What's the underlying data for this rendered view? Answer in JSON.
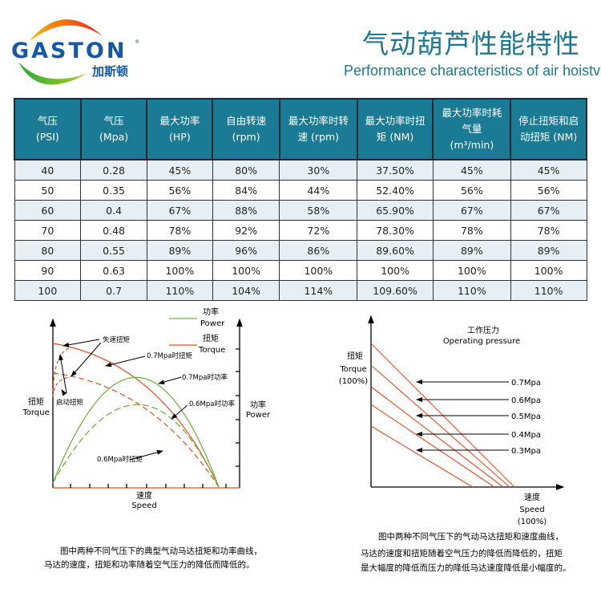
{
  "brand": {
    "name": "GASTON",
    "name_cn": "加斯顿",
    "mark": "®"
  },
  "header": {
    "title_cn": "气动葫芦性能特性",
    "title_en": "Performance characteristics of air hoistv"
  },
  "table": {
    "headers": [
      [
        "气压",
        "(PSI)"
      ],
      [
        "气压",
        "(Mpa)"
      ],
      [
        "最大功率",
        "(HP)"
      ],
      [
        "自由转速",
        "(rpm)"
      ],
      [
        "最大功率时转",
        "速  (rpm)"
      ],
      [
        "最大功率时扭",
        "矩  (NM)"
      ],
      [
        "最大功率时耗",
        "气量",
        "(m³/min)"
      ],
      [
        "停止扭矩和启",
        "动扭矩 (NM)"
      ]
    ],
    "rows": [
      [
        "40",
        "0.28",
        "45%",
        "80%",
        "30%",
        "37.50%",
        "45%",
        "45%"
      ],
      [
        "50",
        "0.35",
        "56%",
        "84%",
        "44%",
        "52.40%",
        "56%",
        "56%"
      ],
      [
        "60",
        "0.4",
        "67%",
        "88%",
        "58%",
        "65.90%",
        "67%",
        "67%"
      ],
      [
        "70",
        "0.48",
        "78%",
        "92%",
        "72%",
        "78.30%",
        "78%",
        "78%"
      ],
      [
        "80",
        "0.55",
        "89%",
        "96%",
        "86%",
        "89.60%",
        "89%",
        "89%"
      ],
      [
        "90",
        "0.63",
        "100%",
        "100%",
        "100%",
        "100%",
        "100%",
        "100%"
      ],
      [
        "100",
        "0.7",
        "110%",
        "104%",
        "114%",
        "109.60%",
        "110%",
        "110%"
      ]
    ]
  },
  "chart_left": {
    "legend": {
      "power_cn": "功率",
      "power_en": "Power",
      "torque_cn": "扭矩",
      "torque_en": "Torque"
    },
    "labels": {
      "stall": "失速扭矩",
      "start": "启动扭矩",
      "t07": "0.7Mpa时扭矩",
      "p07": "0.7Mpa时功率",
      "p06": "0.6Mpa时功率",
      "t06": "0.6Mpa时扭矩"
    },
    "y_left": {
      "cn": "扭矩",
      "en": "Torque"
    },
    "y_right": {
      "cn": "功率",
      "en": "Power"
    },
    "x": {
      "cn": "速度",
      "en": "Speed"
    },
    "colors": {
      "power": "#6fb23f",
      "torque": "#f04a23"
    },
    "caption": [
      "图中两种不同气压下的典型气动马达扭矩和功率曲线，",
      "马达的速度，扭矩和功率随着空气压力的降低而降低的。"
    ]
  },
  "chart_right": {
    "title_cn": "工作压力",
    "title_en": "Operating pressure",
    "y": {
      "cn": "扭矩",
      "en": "Torque",
      "unit": "(100%)"
    },
    "x": {
      "cn": "速度",
      "en": "Speed",
      "unit": "(100%)"
    },
    "pressures": [
      "0.7Mpa",
      "0.6Mpa",
      "0.5Mpa",
      "0.4Mpa",
      "0.3Mpa"
    ],
    "caption": [
      "图中两种不同气压下的气动马达扭矩和速度曲线，",
      "马达的速度和扭矩随着空气压力的降低而降低的，扭矩",
      "是大幅度的降低而压力的降低马达速度降低是小幅度的。"
    ]
  }
}
